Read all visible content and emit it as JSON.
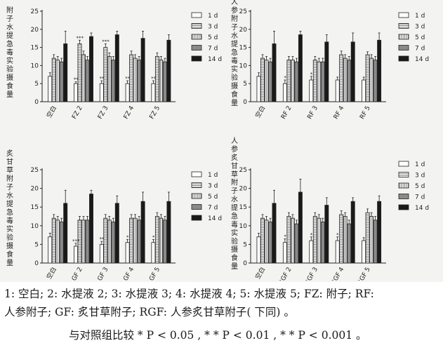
{
  "chart_data": [
    {
      "type": "bar",
      "ylabel": "附子水提急毒实验摄食量",
      "ylim": [
        0,
        25
      ],
      "yticks": [
        0,
        5,
        10,
        15,
        20,
        25
      ],
      "categories": [
        "空白",
        "FZ 2",
        "FZ 3",
        "FZ 4",
        "FZ 5"
      ],
      "series": [
        {
          "name": "1 d",
          "values": [
            7.0,
            5.0,
            5.0,
            5.0,
            5.0
          ],
          "errors": [
            1.0,
            0.5,
            0.8,
            0.8,
            0.8
          ]
        },
        {
          "name": "3 d",
          "values": [
            12.0,
            16.0,
            15.0,
            13.0,
            12.5
          ],
          "errors": [
            1.0,
            1.0,
            1.0,
            1.0,
            1.0
          ]
        },
        {
          "name": "5 d",
          "values": [
            11.5,
            13.0,
            12.5,
            12.0,
            11.5
          ],
          "errors": [
            1.0,
            1.0,
            1.0,
            1.0,
            1.0
          ]
        },
        {
          "name": "7 d",
          "values": [
            11.0,
            11.5,
            11.5,
            11.5,
            11.0
          ],
          "errors": [
            1.0,
            1.0,
            1.0,
            1.0,
            1.0
          ]
        },
        {
          "name": "14 d",
          "values": [
            16.0,
            18.0,
            18.5,
            17.5,
            17.0
          ],
          "errors": [
            3.5,
            1.0,
            1.0,
            2.0,
            1.5
          ]
        }
      ],
      "annotations": [
        {
          "category": 1,
          "series": 0,
          "text": "**"
        },
        {
          "category": 1,
          "series": 1,
          "text": "***"
        },
        {
          "category": 2,
          "series": 0,
          "text": "**"
        },
        {
          "category": 2,
          "series": 1,
          "text": "***"
        },
        {
          "category": 3,
          "series": 0,
          "text": "**"
        },
        {
          "category": 4,
          "series": 0,
          "text": "**"
        }
      ]
    },
    {
      "type": "bar",
      "ylabel": "人参附子水提急毒实验摄食量",
      "ylim": [
        0,
        25
      ],
      "yticks": [
        0,
        5,
        10,
        15,
        20,
        25
      ],
      "categories": [
        "空白",
        "RF 2",
        "RF 3",
        "RF 4",
        "RF 5"
      ],
      "series": [
        {
          "name": "1 d",
          "values": [
            7.0,
            5.0,
            6.0,
            6.0,
            6.0
          ],
          "errors": [
            1.0,
            1.0,
            1.0,
            0.8,
            0.8
          ]
        },
        {
          "name": "3 d",
          "values": [
            12.0,
            11.5,
            11.5,
            13.0,
            13.0
          ],
          "errors": [
            1.0,
            1.0,
            1.0,
            1.0,
            0.8
          ]
        },
        {
          "name": "5 d",
          "values": [
            11.5,
            11.5,
            11.0,
            12.0,
            12.0
          ],
          "errors": [
            1.0,
            1.0,
            1.0,
            1.0,
            1.0
          ]
        },
        {
          "name": "7 d",
          "values": [
            11.0,
            11.0,
            11.0,
            11.5,
            11.5
          ],
          "errors": [
            1.0,
            1.0,
            1.0,
            1.0,
            1.0
          ]
        },
        {
          "name": "14 d",
          "values": [
            16.0,
            18.5,
            16.5,
            16.5,
            17.0
          ],
          "errors": [
            3.5,
            1.0,
            2.0,
            2.5,
            2.0
          ]
        }
      ],
      "annotations": [
        {
          "category": 1,
          "series": 0,
          "text": "*"
        },
        {
          "category": 2,
          "series": 0,
          "text": "*"
        }
      ]
    },
    {
      "type": "bar",
      "ylabel": "炙甘草附子水提急毒实验摄食量",
      "ylim": [
        0,
        25
      ],
      "yticks": [
        0,
        5,
        10,
        15,
        20,
        25
      ],
      "categories": [
        "空白",
        "GF 2",
        "GF 3",
        "GF 4",
        "GF 5"
      ],
      "series": [
        {
          "name": "1 d",
          "values": [
            7.0,
            4.5,
            5.0,
            5.5,
            5.5
          ],
          "errors": [
            1.0,
            0.8,
            0.8,
            0.8,
            0.8
          ]
        },
        {
          "name": "3 d",
          "values": [
            12.0,
            11.5,
            12.0,
            12.0,
            12.5
          ],
          "errors": [
            1.0,
            1.0,
            1.0,
            1.0,
            1.0
          ]
        },
        {
          "name": "5 d",
          "values": [
            11.5,
            11.5,
            11.5,
            12.0,
            12.0
          ],
          "errors": [
            1.0,
            1.0,
            1.0,
            1.0,
            1.0
          ]
        },
        {
          "name": "7 d",
          "values": [
            11.0,
            11.5,
            11.0,
            11.5,
            11.5
          ],
          "errors": [
            1.0,
            1.0,
            1.0,
            1.0,
            1.0
          ]
        },
        {
          "name": "14 d",
          "values": [
            16.0,
            18.5,
            16.0,
            16.5,
            16.5
          ],
          "errors": [
            3.5,
            1.0,
            2.0,
            2.5,
            2.5
          ]
        }
      ],
      "annotations": [
        {
          "category": 1,
          "series": 0,
          "text": "***"
        },
        {
          "category": 2,
          "series": 0,
          "text": "**"
        },
        {
          "category": 3,
          "series": 0,
          "text": "*"
        },
        {
          "category": 4,
          "series": 0,
          "text": "*"
        }
      ]
    },
    {
      "type": "bar",
      "ylabel": "人参炙甘草附子水提急毒实验摄食量",
      "ylim": [
        0,
        25
      ],
      "yticks": [
        0,
        5,
        10,
        15,
        20,
        25
      ],
      "categories": [
        "空白",
        "RGF 2",
        "RGF 3",
        "RGF 4",
        "RGF 5"
      ],
      "series": [
        {
          "name": "1 d",
          "values": [
            7.0,
            5.5,
            6.0,
            6.0,
            6.0
          ],
          "errors": [
            1.0,
            1.0,
            1.0,
            1.0,
            0.8
          ]
        },
        {
          "name": "3 d",
          "values": [
            12.0,
            12.5,
            12.5,
            13.0,
            13.5
          ],
          "errors": [
            1.0,
            1.0,
            1.0,
            1.0,
            1.0
          ]
        },
        {
          "name": "5 d",
          "values": [
            11.5,
            12.0,
            12.0,
            12.5,
            12.5
          ],
          "errors": [
            1.0,
            1.0,
            1.0,
            1.0,
            1.0
          ]
        },
        {
          "name": "7 d",
          "values": [
            11.0,
            10.5,
            11.0,
            10.5,
            11.5
          ],
          "errors": [
            1.0,
            1.0,
            1.0,
            1.0,
            1.0
          ]
        },
        {
          "name": "14 d",
          "values": [
            16.0,
            19.0,
            15.5,
            16.5,
            16.5
          ],
          "errors": [
            3.5,
            3.5,
            2.0,
            1.0,
            1.5
          ]
        }
      ],
      "annotations": [
        {
          "category": 1,
          "series": 0,
          "text": "*"
        },
        {
          "category": 2,
          "series": 0,
          "text": "*"
        },
        {
          "category": 3,
          "series": 0,
          "text": "*"
        }
      ]
    }
  ],
  "styles": {
    "series_fills": [
      "#ffffff",
      "#e8e8e8",
      "#ffffff",
      "#8a8a8a",
      "#1a1a1a"
    ],
    "series_patterns": [
      "none",
      "hlines",
      "vlines",
      "none",
      "none"
    ],
    "stroke": "#222222"
  },
  "caption": {
    "line1": "1: 空白; 2: 水提液 2; 3: 水提液 3; 4: 水提液 4; 5: 水提液 5; FZ: 附子; RF:",
    "line2": "人参附子; GF: 炙甘草附子; RGF: 人参炙甘草附子( 下同) 。",
    "line3": "与对照组比较 * P < 0.05 , * * P < 0.01 , * * P < 0.001 。"
  }
}
